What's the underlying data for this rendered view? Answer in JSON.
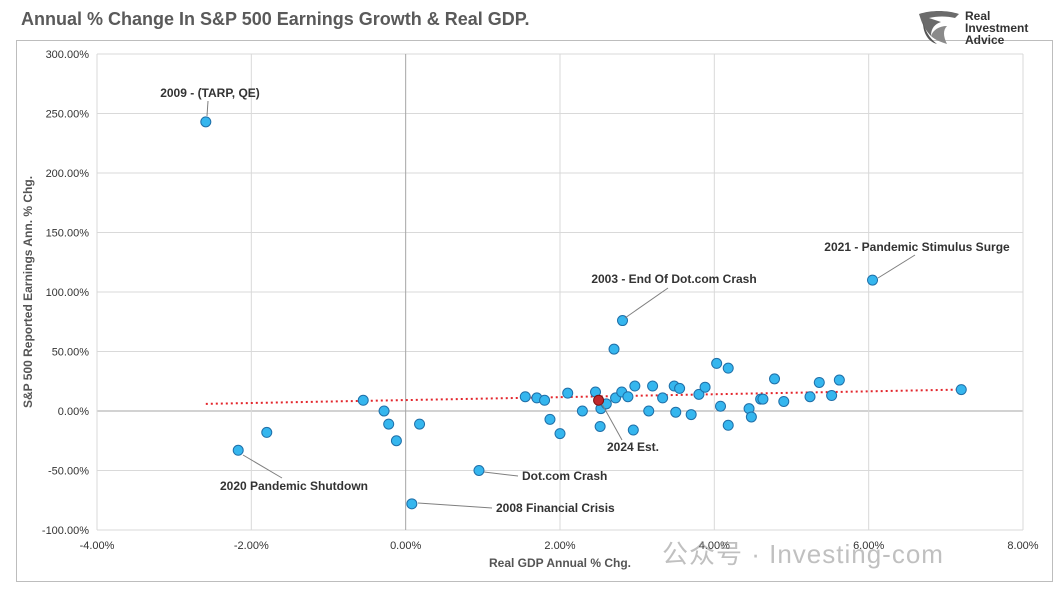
{
  "header": {
    "title": "Annual % Change In S&P 500 Earnings Growth & Real GDP.",
    "logo_lines": [
      "Real",
      "Investment",
      "Advice"
    ]
  },
  "watermark": "公众号 · Investing-com",
  "chart_data": {
    "type": "scatter",
    "title": "Annual % Change In S&P 500 Earnings Growth & Real GDP.",
    "xlabel": "Real GDP Annual % Chg.",
    "ylabel": "S&P 500 Reported Earnings Ann. % Chg.",
    "xlim": [
      -4,
      8
    ],
    "ylim": [
      -100,
      300
    ],
    "x_ticks": [
      -4,
      -2,
      0,
      2,
      4,
      6,
      8
    ],
    "y_ticks": [
      -100,
      -50,
      0,
      50,
      100,
      150,
      200,
      250,
      300
    ],
    "x_tick_labels": [
      "-4.00%",
      "-2.00%",
      "0.00%",
      "2.00%",
      "4.00%",
      "6.00%",
      "8.00%"
    ],
    "y_tick_labels": [
      "-100.00%",
      "-50.00%",
      "0.00%",
      "50.00%",
      "100.00%",
      "150.00%",
      "200.00%",
      "250.00%",
      "300.00%"
    ],
    "grid": true,
    "colors": {
      "point": "#35b6ee",
      "point_stroke": "#1f6fa8",
      "highlight": "#c0282b",
      "trend": "#e3262c",
      "grid": "#d9d9d9"
    },
    "points": [
      {
        "x": -2.59,
        "y": 243
      },
      {
        "x": -2.17,
        "y": -33
      },
      {
        "x": -1.8,
        "y": -18
      },
      {
        "x": -0.55,
        "y": 9
      },
      {
        "x": -0.28,
        "y": 0
      },
      {
        "x": -0.22,
        "y": -11
      },
      {
        "x": -0.12,
        "y": -25
      },
      {
        "x": 0.08,
        "y": -78
      },
      {
        "x": 0.18,
        "y": -11
      },
      {
        "x": 0.95,
        "y": -50
      },
      {
        "x": 1.55,
        "y": 12
      },
      {
        "x": 1.7,
        "y": 11
      },
      {
        "x": 1.8,
        "y": 9
      },
      {
        "x": 1.87,
        "y": -7
      },
      {
        "x": 2.0,
        "y": -19
      },
      {
        "x": 2.1,
        "y": 15
      },
      {
        "x": 2.29,
        "y": 0
      },
      {
        "x": 2.46,
        "y": 16
      },
      {
        "x": 2.52,
        "y": -13
      },
      {
        "x": 2.53,
        "y": 2
      },
      {
        "x": 2.6,
        "y": 6
      },
      {
        "x": 2.7,
        "y": 52
      },
      {
        "x": 2.72,
        "y": 11
      },
      {
        "x": 2.8,
        "y": 16
      },
      {
        "x": 2.81,
        "y": 76
      },
      {
        "x": 2.88,
        "y": 12
      },
      {
        "x": 2.95,
        "y": -16
      },
      {
        "x": 2.97,
        "y": 21
      },
      {
        "x": 3.15,
        "y": 0
      },
      {
        "x": 3.2,
        "y": 21
      },
      {
        "x": 3.33,
        "y": 11
      },
      {
        "x": 3.48,
        "y": 21
      },
      {
        "x": 3.5,
        "y": -1
      },
      {
        "x": 3.55,
        "y": 19
      },
      {
        "x": 3.7,
        "y": -3
      },
      {
        "x": 3.8,
        "y": 14
      },
      {
        "x": 3.88,
        "y": 20
      },
      {
        "x": 4.03,
        "y": 40
      },
      {
        "x": 4.08,
        "y": 4
      },
      {
        "x": 4.18,
        "y": 36
      },
      {
        "x": 4.18,
        "y": -12
      },
      {
        "x": 4.45,
        "y": 2
      },
      {
        "x": 4.48,
        "y": -5
      },
      {
        "x": 4.6,
        "y": 10
      },
      {
        "x": 4.63,
        "y": 10
      },
      {
        "x": 4.78,
        "y": 27
      },
      {
        "x": 4.9,
        "y": 8
      },
      {
        "x": 5.24,
        "y": 12
      },
      {
        "x": 5.36,
        "y": 24
      },
      {
        "x": 5.52,
        "y": 13
      },
      {
        "x": 5.62,
        "y": 26
      },
      {
        "x": 6.05,
        "y": 110
      },
      {
        "x": 7.2,
        "y": 18
      }
    ],
    "highlight_points": [
      {
        "x": 2.5,
        "y": 9,
        "label": "2024 Est."
      }
    ],
    "trendline": {
      "x": [
        -2.59,
        7.2
      ],
      "y": [
        6,
        18
      ]
    },
    "annotations": [
      {
        "text": "2009 - (TARP, QE)",
        "x": -2.59,
        "y": 243
      },
      {
        "text": "2021 - Pandemic Stimulus Surge",
        "x": 6.05,
        "y": 110
      },
      {
        "text": "2003 - End Of Dot.com Crash",
        "x": 2.81,
        "y": 76
      },
      {
        "text": "2024 Est.",
        "x": 2.5,
        "y": 9
      },
      {
        "text": "2020 Pandemic Shutdown",
        "x": -2.17,
        "y": -33
      },
      {
        "text": "Dot.com Crash",
        "x": 0.95,
        "y": -50
      },
      {
        "text": "2008 Financial Crisis",
        "x": 0.08,
        "y": -78
      }
    ]
  }
}
